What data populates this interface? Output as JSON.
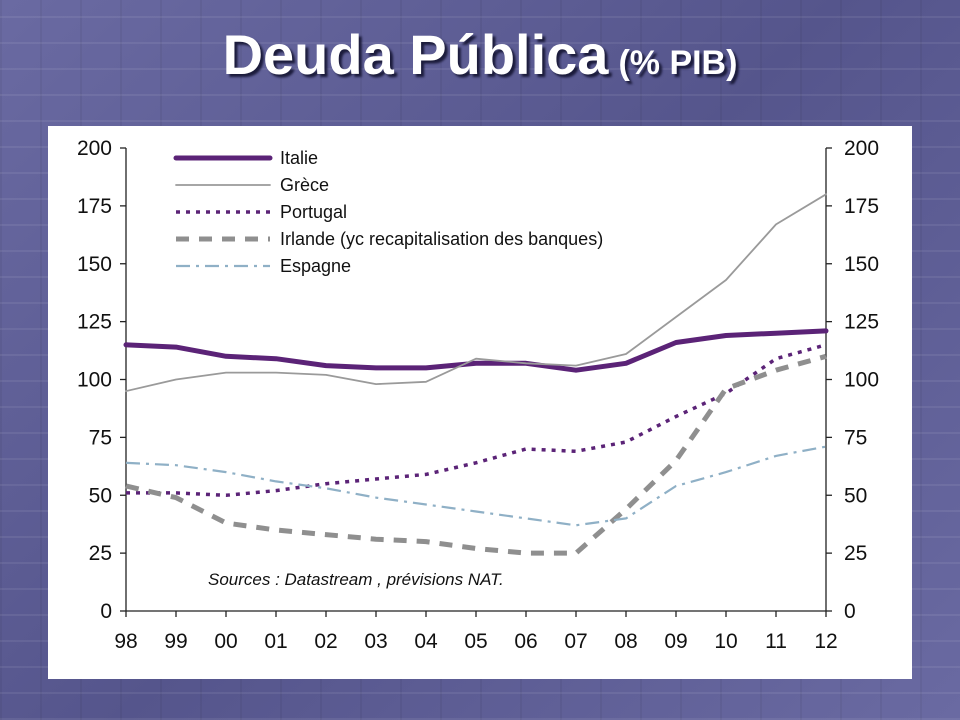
{
  "slide": {
    "title": "Deuda Pública",
    "subtitle": "(% PIB)"
  },
  "chart_data": {
    "type": "line",
    "title": "",
    "xlabel": "",
    "ylabel": "",
    "x": [
      "98",
      "99",
      "00",
      "01",
      "02",
      "03",
      "04",
      "05",
      "06",
      "07",
      "08",
      "09",
      "10",
      "11",
      "12"
    ],
    "ylim": [
      0,
      200
    ],
    "yticks": [
      0,
      25,
      50,
      75,
      100,
      125,
      150,
      175,
      200
    ],
    "dual_y_axis": true,
    "grid": false,
    "legend_position": "top-left",
    "series": [
      {
        "name": "Italie",
        "style": "solid-thick",
        "color": "#5b2377",
        "values": [
          115,
          114,
          110,
          109,
          106,
          105,
          105,
          107,
          107,
          104,
          107,
          116,
          119,
          120,
          121
        ]
      },
      {
        "name": "Grèce",
        "style": "solid-thin",
        "color": "#9a9a9a",
        "values": [
          95,
          100,
          103,
          103,
          102,
          98,
          99,
          109,
          107,
          106,
          111,
          127,
          143,
          167,
          180
        ]
      },
      {
        "name": "Portugal",
        "style": "dotted",
        "color": "#5b2377",
        "values": [
          51,
          51,
          50,
          52,
          55,
          57,
          59,
          64,
          70,
          69,
          73,
          84,
          94,
          109,
          115
        ]
      },
      {
        "name": "Irlande (yc recapitalisation des banques)",
        "style": "dashed-thick",
        "color": "#8f8f8f",
        "values": [
          54,
          49,
          38,
          35,
          33,
          31,
          30,
          27,
          25,
          25,
          44,
          65,
          96,
          104,
          110
        ]
      },
      {
        "name": "Espagne",
        "style": "dash-dot",
        "color": "#8fb0c6",
        "values": [
          64,
          63,
          60,
          56,
          53,
          49,
          46,
          43,
          40,
          37,
          40,
          54,
          60,
          67,
          71
        ]
      }
    ],
    "annotation": "Sources  :  Datastream ,  prévisions NAT."
  }
}
